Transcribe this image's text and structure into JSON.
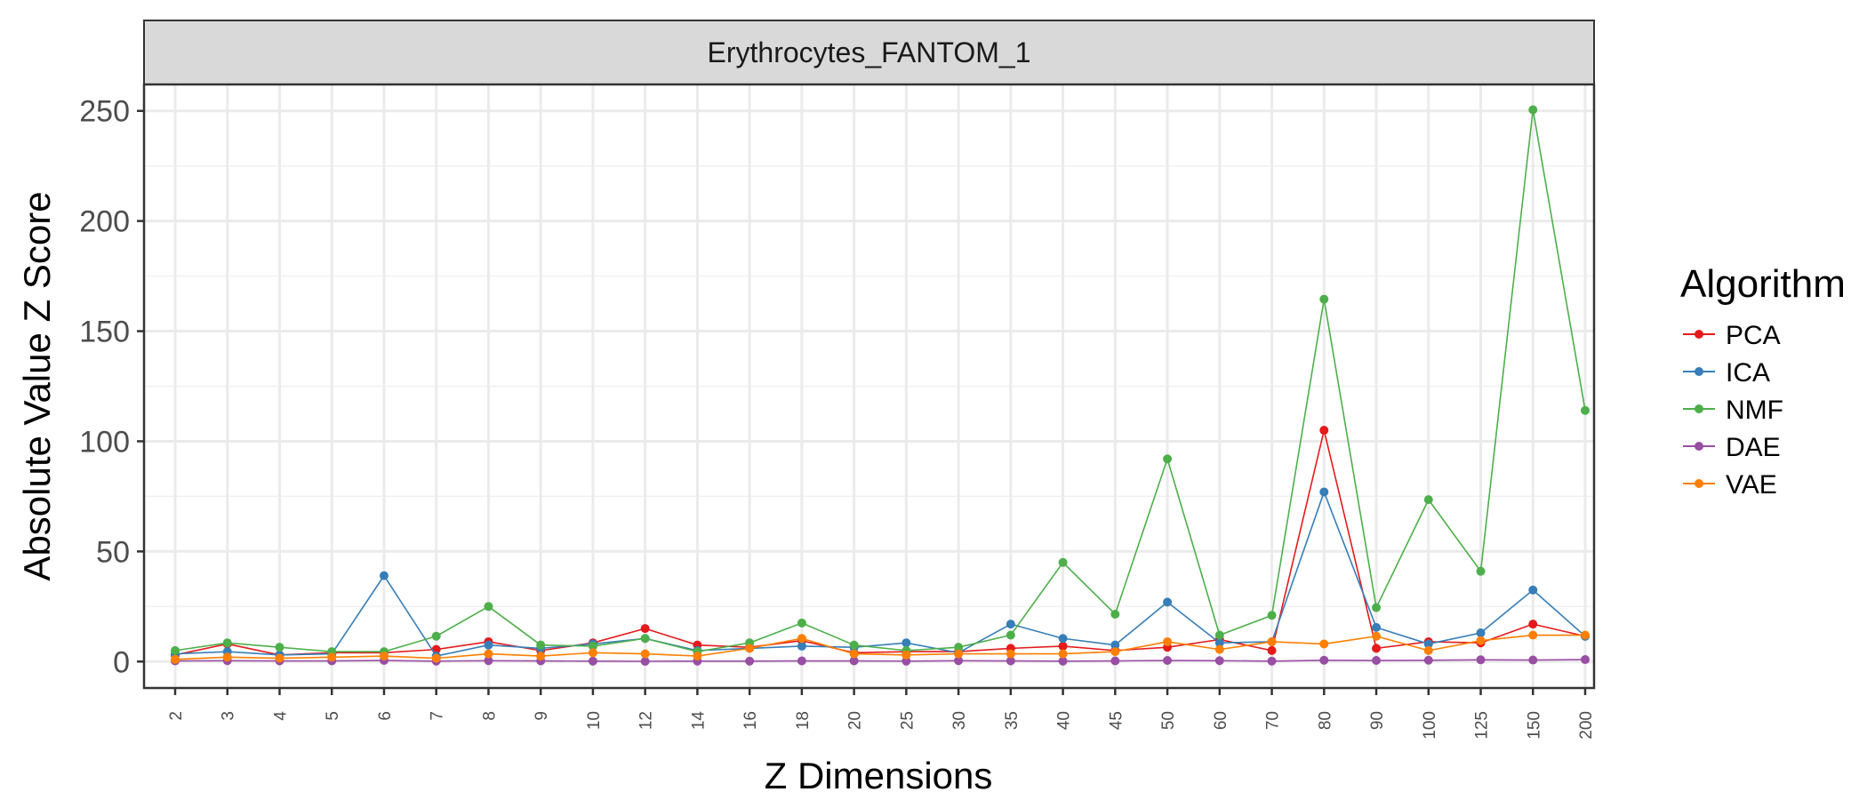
{
  "chart_data": {
    "type": "line",
    "title": "Erythrocytes_FANTOM_1",
    "xlabel": "Z Dimensions",
    "ylabel": "Absolute Value Z Score",
    "ylim": [
      -12,
      262
    ],
    "yticks": [
      0,
      50,
      100,
      150,
      200,
      250
    ],
    "grid": true,
    "legend": {
      "title": "Algorithm",
      "position": "right"
    },
    "categories": [
      "2",
      "3",
      "4",
      "5",
      "6",
      "7",
      "8",
      "9",
      "10",
      "12",
      "14",
      "16",
      "18",
      "20",
      "25",
      "30",
      "35",
      "40",
      "45",
      "50",
      "60",
      "70",
      "80",
      "90",
      "100",
      "125",
      "150",
      "200"
    ],
    "series": [
      {
        "name": "PCA",
        "color": "#e41a1c",
        "values": [
          3,
          8,
          3,
          4,
          4,
          5.5,
          9,
          5,
          8.5,
          15,
          7.5,
          6.5,
          9.5,
          4,
          4.5,
          4.5,
          6,
          7,
          5,
          6.5,
          10,
          5,
          105,
          6,
          9,
          8.5,
          17,
          11.5
        ]
      },
      {
        "name": "ICA",
        "color": "#377eb8",
        "values": [
          3.5,
          4.5,
          3,
          3.5,
          39,
          2.5,
          7.5,
          6,
          8,
          10.5,
          5,
          6,
          7,
          6.5,
          8.5,
          4,
          17,
          10.5,
          7.5,
          27,
          8.5,
          9,
          77,
          15.5,
          8,
          13,
          32.5,
          11.5
        ]
      },
      {
        "name": "NMF",
        "color": "#4daf4a",
        "values": [
          5,
          8.5,
          6.5,
          4.5,
          4.5,
          11.5,
          25,
          7.5,
          7,
          10.5,
          4.5,
          8.5,
          17.5,
          7.5,
          5,
          6.5,
          12,
          45,
          21.5,
          92,
          12,
          21,
          164.5,
          24.5,
          73.5,
          41,
          250.5,
          114
        ]
      },
      {
        "name": "DAE",
        "color": "#984ea3",
        "values": [
          0.3,
          0.4,
          0.3,
          0.3,
          0.5,
          0.2,
          0.4,
          0.3,
          0.2,
          0.1,
          0.2,
          0.2,
          0.3,
          0.3,
          0.2,
          0.4,
          0.3,
          0.2,
          0.3,
          0.5,
          0.4,
          0.2,
          0.6,
          0.5,
          0.6,
          0.8,
          0.7,
          0.9
        ]
      },
      {
        "name": "VAE",
        "color": "#ff7f00",
        "values": [
          1,
          2,
          1.5,
          2,
          2.5,
          1.5,
          3.5,
          2.5,
          4,
          3.5,
          2.5,
          6,
          10.5,
          3.5,
          3,
          3.5,
          3.5,
          3.5,
          4.5,
          9,
          5.5,
          9,
          8,
          11.5,
          5,
          9.5,
          12,
          12
        ]
      }
    ]
  }
}
